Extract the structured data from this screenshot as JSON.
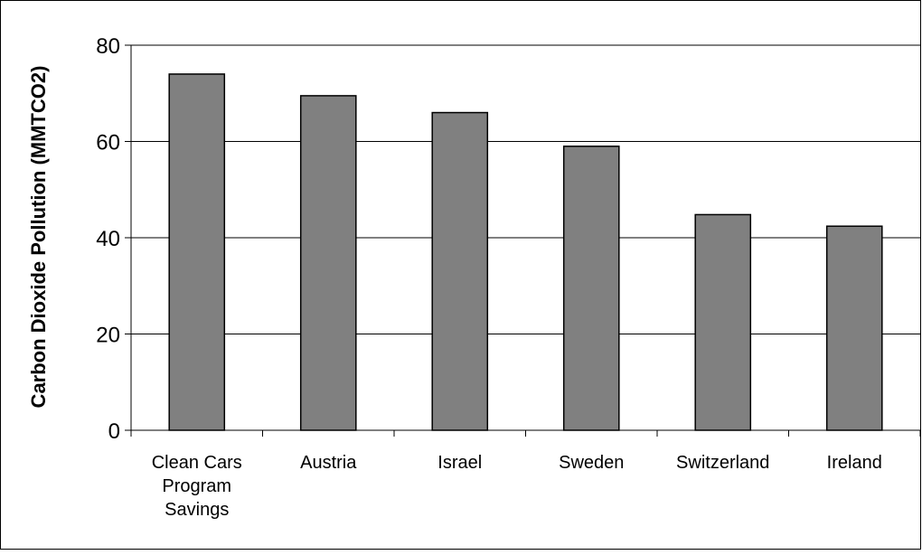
{
  "chart_data": {
    "type": "bar",
    "title": "",
    "xlabel": "",
    "ylabel": "Carbon Dioxide Pollution (MMTCO2)",
    "categories": [
      [
        "Clean Cars",
        "Program",
        "Savings"
      ],
      [
        "Austria"
      ],
      [
        "Israel"
      ],
      [
        "Sweden"
      ],
      [
        "Switzerland"
      ],
      [
        "Ireland"
      ]
    ],
    "values": [
      74,
      69.5,
      66,
      59,
      44.8,
      42.4
    ],
    "ylim": [
      0,
      80
    ],
    "yticks": [
      0,
      20,
      40,
      60,
      80
    ],
    "grid": true,
    "legend": "none",
    "bar_color": "#808080",
    "bar_edge_color": "#000000",
    "grid_color": "#000000",
    "border_color": "#000000"
  }
}
